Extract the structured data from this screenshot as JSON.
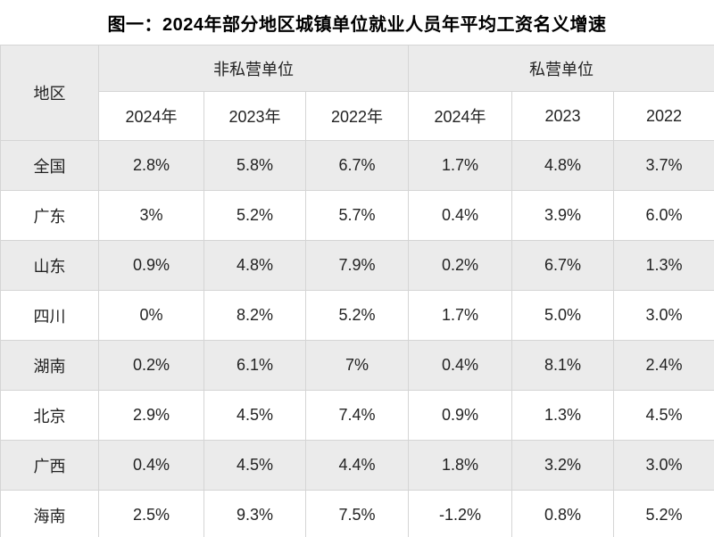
{
  "title": "图一：2024年部分地区城镇单位就业人员年平均工资名义增速",
  "table": {
    "region_header": "地区",
    "groups": [
      {
        "label": "非私营单位",
        "years": [
          "2024年",
          "2023年",
          "2022年"
        ]
      },
      {
        "label": "私营单位",
        "years": [
          "2024年",
          "2023",
          "2022"
        ]
      }
    ],
    "rows": [
      {
        "region": "全国",
        "values": [
          "2.8%",
          "5.8%",
          "6.7%",
          "1.7%",
          "4.8%",
          "3.7%"
        ]
      },
      {
        "region": "广东",
        "values": [
          "3%",
          "5.2%",
          "5.7%",
          "0.4%",
          "3.9%",
          "6.0%"
        ]
      },
      {
        "region": "山东",
        "values": [
          "0.9%",
          "4.8%",
          "7.9%",
          "0.2%",
          "6.7%",
          "1.3%"
        ]
      },
      {
        "region": "四川",
        "values": [
          "0%",
          "8.2%",
          "5.2%",
          "1.7%",
          "5.0%",
          "3.0%"
        ]
      },
      {
        "region": "湖南",
        "values": [
          "0.2%",
          "6.1%",
          "7%",
          "0.4%",
          "8.1%",
          "2.4%"
        ]
      },
      {
        "region": "北京",
        "values": [
          "2.9%",
          "4.5%",
          "7.4%",
          "0.9%",
          "1.3%",
          "4.5%"
        ]
      },
      {
        "region": "广西",
        "values": [
          "0.4%",
          "4.5%",
          "4.4%",
          "1.8%",
          "3.2%",
          "3.0%"
        ]
      },
      {
        "region": "海南",
        "values": [
          "2.5%",
          "9.3%",
          "7.5%",
          "-1.2%",
          "0.8%",
          "5.2%"
        ]
      }
    ]
  },
  "colors": {
    "stripe_bg": "#ebebeb",
    "row_bg": "#ffffff",
    "border": "#d5d5d5",
    "text": "#222222",
    "title_text": "#000000"
  },
  "chart_data": {
    "type": "table",
    "title": "图一：2024年部分地区城镇单位就业人员年平均工资名义增速",
    "unit": "%",
    "column_groups": [
      "非私营单位",
      "私营单位"
    ],
    "columns": [
      "地区",
      "非私营单位 2024年",
      "非私营单位 2023年",
      "非私营单位 2022年",
      "私营单位 2024年",
      "私营单位 2023",
      "私营单位 2022"
    ],
    "rows": [
      [
        "全国",
        2.8,
        5.8,
        6.7,
        1.7,
        4.8,
        3.7
      ],
      [
        "广东",
        3.0,
        5.2,
        5.7,
        0.4,
        3.9,
        6.0
      ],
      [
        "山东",
        0.9,
        4.8,
        7.9,
        0.2,
        6.7,
        1.3
      ],
      [
        "四川",
        0.0,
        8.2,
        5.2,
        1.7,
        5.0,
        3.0
      ],
      [
        "湖南",
        0.2,
        6.1,
        7.0,
        0.4,
        8.1,
        2.4
      ],
      [
        "北京",
        2.9,
        4.5,
        7.4,
        0.9,
        1.3,
        4.5
      ],
      [
        "广西",
        0.4,
        4.5,
        4.4,
        1.8,
        3.2,
        3.0
      ],
      [
        "海南",
        2.5,
        9.3,
        7.5,
        -1.2,
        0.8,
        5.2
      ]
    ]
  }
}
